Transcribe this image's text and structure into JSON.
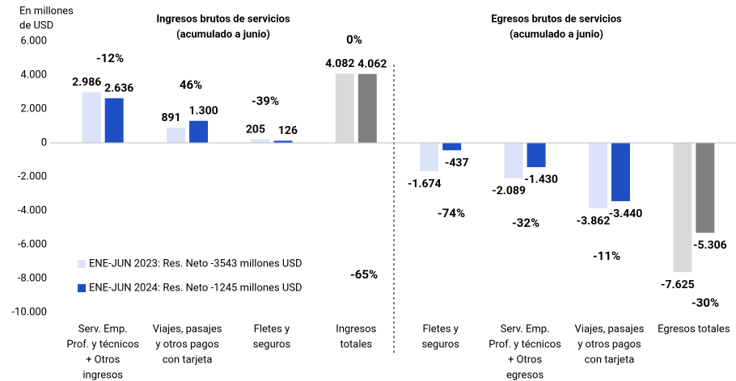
{
  "chart_data": {
    "type": "bar",
    "y_label": [
      "En millones",
      "de USD"
    ],
    "section_titles": [
      [
        "Ingresos brutos de servicios",
        "(acumulado a junio)"
      ],
      [
        "Egresos brutos de servicios",
        "(acumulado a junio)"
      ]
    ],
    "categories": [
      [
        "Serv. Emp.",
        "Prof. y técnicos",
        "+ Otros",
        "ingresos"
      ],
      [
        "Viajes, pasajes",
        "y otros pagos",
        "con tarjeta"
      ],
      [
        "Fletes y",
        "seguros"
      ],
      [
        "Ingresos",
        "totales"
      ],
      [
        "Fletes y",
        "seguros"
      ],
      [
        "Serv. Emp.",
        "Prof. y técnicos",
        "+ Otros",
        "egresos"
      ],
      [
        "Viajes, pasajes",
        "y otros pagos",
        "con tarjeta"
      ],
      [
        "Egresos totales"
      ]
    ],
    "series": [
      {
        "name": "ENE-JUN 2023: Res. Neto -3543 millones USD",
        "color": "#dae3f8",
        "colors": [
          "#dae3f8",
          "#dae3f8",
          "#dae3f8",
          "#d9d9d9",
          "#dae3f8",
          "#dae3f8",
          "#dae3f8",
          "#d9d9d9"
        ],
        "values": [
          2986,
          891,
          205,
          4082,
          -1674,
          -2089,
          -3862,
          -7625
        ],
        "value_labels": [
          "2.986",
          "891",
          "205",
          "4.082",
          "-1.674",
          "-2.089",
          "-3.862",
          "-7.625"
        ]
      },
      {
        "name": "ENE-JUN 2024: Res. Neto -1245 millones USD",
        "color": "#1f4fc4",
        "colors": [
          "#1f4fc4",
          "#1f4fc4",
          "#1f4fc4",
          "#808080",
          "#1f4fc4",
          "#1f4fc4",
          "#1f4fc4",
          "#808080"
        ],
        "values": [
          2636,
          1300,
          126,
          4062,
          -437,
          -1430,
          -3440,
          -5306
        ],
        "value_labels": [
          "2.636",
          "1.300",
          "126",
          "4.062",
          "-437",
          "-1.430",
          "-3.440",
          "-5.306"
        ]
      }
    ],
    "annotations": [
      {
        "text": "-12%",
        "color": "#ff0000"
      },
      {
        "text": "46%",
        "color": "#00b050"
      },
      {
        "text": "-39%",
        "color": "#ff0000"
      },
      {
        "text": "0%",
        "color": "#ff0000"
      },
      {
        "text": "-74%",
        "color": "#ff0000"
      },
      {
        "text": "-32%",
        "color": "#ff0000"
      },
      {
        "text": "-11%",
        "color": "#ff0000"
      },
      {
        "text": "-30%",
        "color": "#ff0000"
      },
      {
        "text": "-65%",
        "color": "#ff0000"
      }
    ],
    "ylim": [
      -10000,
      6000
    ],
    "yticks": [
      {
        "value": 6000,
        "label": "6.000"
      },
      {
        "value": 4000,
        "label": "4.000"
      },
      {
        "value": 2000,
        "label": "2.000"
      },
      0,
      {
        "value": -2000,
        "label": "-2.000"
      },
      {
        "value": -4000,
        "label": "-4.000"
      },
      {
        "value": -6000,
        "label": "-6.000"
      },
      {
        "value": -8000,
        "label": "-8.000"
      },
      {
        "value": -10000,
        "label": "-10.000"
      }
    ],
    "legend": "lower-left"
  }
}
